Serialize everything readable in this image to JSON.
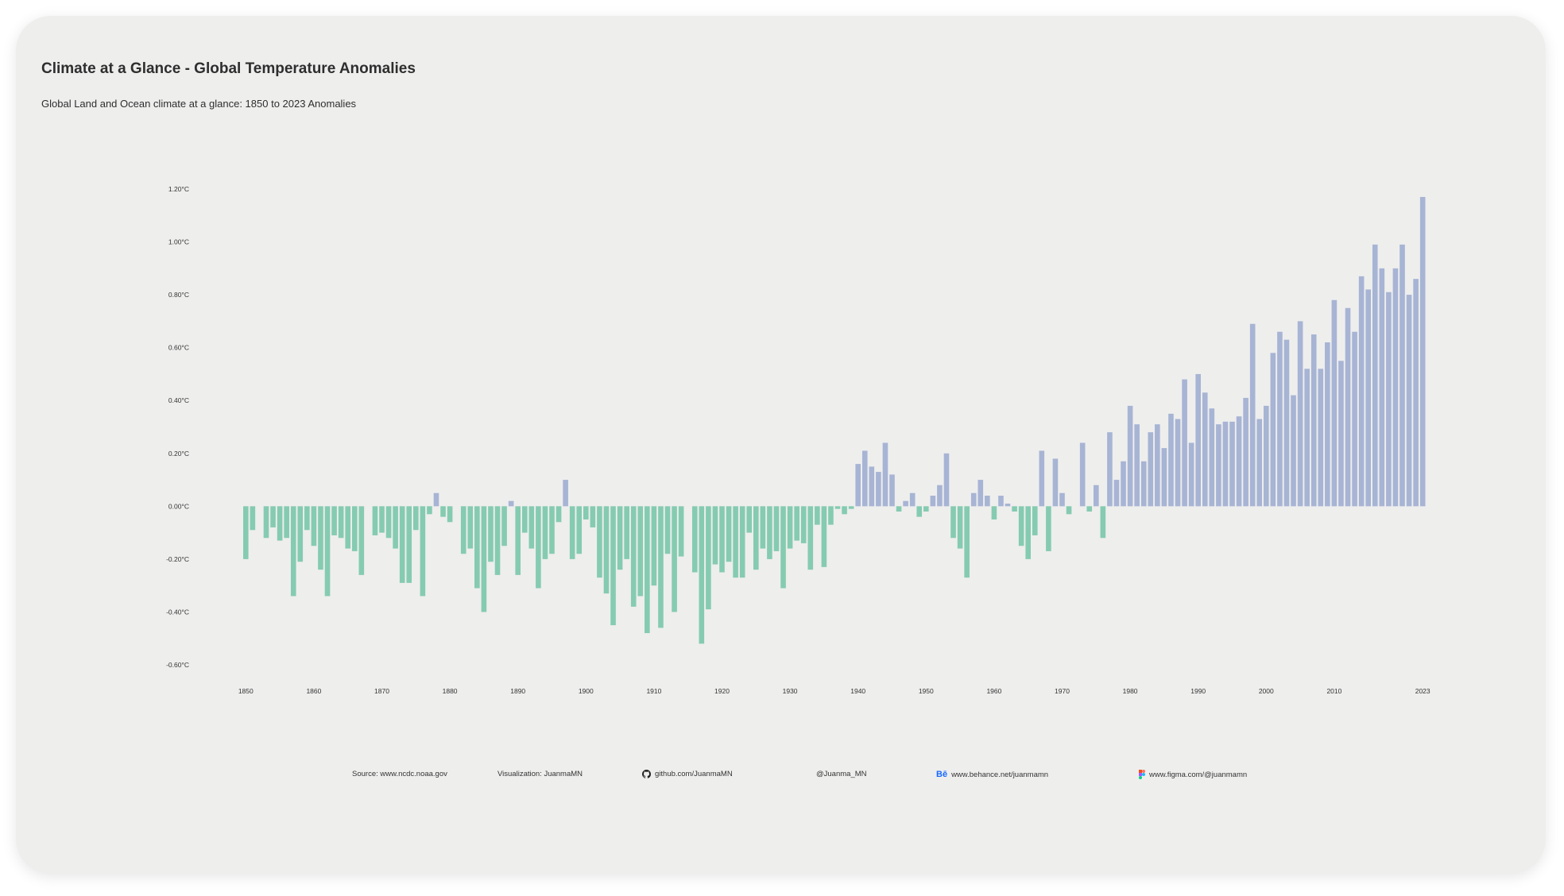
{
  "page": {
    "title": "Climate at a Glance - Global Temperature Anomalies",
    "subtitle": "Global Land and Ocean climate at a glance: 1850 to 2023 Anomalies"
  },
  "colors": {
    "negative": "#85cbb1",
    "positive": "#a7b4d4",
    "text": "#333333",
    "card": "#eeeeed"
  },
  "footer": {
    "source": "Source: www.ncdc.noaa.gov",
    "visualization": "Visualization: JuanmaMN",
    "github": "github.com/JuanmaMN",
    "twitter": "@Juanma_MN",
    "behance": "www.behance.net/juanmamn",
    "figma": "www.figma.com/@juanmamn",
    "icons": [
      "github-icon",
      "behance-icon",
      "figma-icon"
    ]
  },
  "chart_data": {
    "type": "bar",
    "title": "Climate at a Glance - Global Temperature Anomalies",
    "subtitle": "Global Land and Ocean climate at a glance: 1850 to 2023 Anomalies",
    "x_start": 1850,
    "x_end": 2023,
    "ylim": [
      -0.6,
      1.2
    ],
    "y_ticks": [
      "1.20°C",
      "1.00°C",
      "0.80°C",
      "0.60°C",
      "0.40°C",
      "0.20°C",
      "0.00°C",
      "-0.20°C",
      "-0.40°C",
      "-0.60°C"
    ],
    "y_tick_values": [
      1.2,
      1.0,
      0.8,
      0.6,
      0.4,
      0.2,
      0.0,
      -0.2,
      -0.4,
      -0.6
    ],
    "x_ticks": [
      "1850",
      "1860",
      "1870",
      "1880",
      "1890",
      "1900",
      "1910",
      "1920",
      "1930",
      "1940",
      "1950",
      "1960",
      "1970",
      "1980",
      "1990",
      "2000",
      "2010",
      "2023"
    ],
    "x_tick_values": [
      1850,
      1860,
      1870,
      1880,
      1890,
      1900,
      1910,
      1920,
      1930,
      1940,
      1950,
      1960,
      1970,
      1980,
      1990,
      2000,
      2010,
      2023
    ],
    "grid": false,
    "values": [
      -0.2,
      -0.09,
      0.0,
      -0.12,
      -0.08,
      -0.13,
      -0.12,
      -0.34,
      -0.21,
      -0.09,
      -0.15,
      -0.24,
      -0.34,
      -0.11,
      -0.12,
      -0.16,
      -0.17,
      -0.26,
      0.0,
      -0.11,
      -0.1,
      -0.12,
      -0.16,
      -0.29,
      -0.29,
      -0.09,
      -0.34,
      -0.03,
      0.05,
      -0.04,
      -0.06,
      0.0,
      -0.18,
      -0.16,
      -0.31,
      -0.4,
      -0.21,
      -0.26,
      -0.15,
      0.02,
      -0.26,
      -0.1,
      -0.16,
      -0.31,
      -0.2,
      -0.18,
      -0.06,
      0.1,
      -0.2,
      -0.18,
      -0.05,
      -0.08,
      -0.27,
      -0.33,
      -0.45,
      -0.24,
      -0.2,
      -0.38,
      -0.34,
      -0.48,
      -0.3,
      -0.46,
      -0.18,
      -0.4,
      -0.19,
      0.0,
      -0.25,
      -0.52,
      -0.39,
      -0.22,
      -0.25,
      -0.21,
      -0.27,
      -0.27,
      -0.1,
      -0.24,
      -0.16,
      -0.2,
      -0.17,
      -0.31,
      -0.16,
      -0.13,
      -0.14,
      -0.24,
      -0.07,
      -0.23,
      -0.07,
      -0.01,
      -0.03,
      -0.01,
      0.16,
      0.21,
      0.15,
      0.13,
      0.24,
      0.12,
      -0.02,
      0.02,
      0.05,
      -0.04,
      -0.02,
      0.04,
      0.08,
      0.2,
      -0.12,
      -0.16,
      -0.27,
      0.05,
      0.1,
      0.04,
      -0.05,
      0.04,
      0.01,
      -0.02,
      -0.15,
      -0.2,
      -0.11,
      0.21,
      -0.17,
      0.18,
      0.05,
      -0.03,
      0.0,
      0.24,
      -0.02,
      0.08,
      -0.12,
      0.28,
      0.1,
      0.17,
      0.38,
      0.31,
      0.17,
      0.28,
      0.31,
      0.22,
      0.35,
      0.33,
      0.48,
      0.24,
      0.5,
      0.43,
      0.37,
      0.31,
      0.32,
      0.32,
      0.34,
      0.41,
      0.69,
      0.33,
      0.38,
      0.58,
      0.66,
      0.63,
      0.42,
      0.7,
      0.52,
      0.65,
      0.52,
      0.62,
      0.78,
      0.55,
      0.75,
      0.66,
      0.87,
      0.82,
      0.99,
      0.9,
      0.81,
      0.9,
      0.99,
      0.8,
      0.86,
      1.17
    ]
  }
}
